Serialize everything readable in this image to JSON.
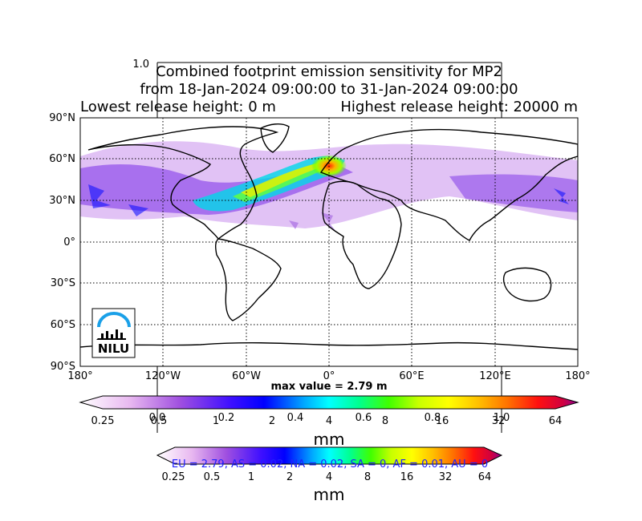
{
  "figure": {
    "stray_label": "1.0",
    "title_line1": "Combined footprint emission sensitivity for MP2",
    "title_line2": "from 18-Jan-2024 09:00:00 to 31-Jan-2024 09:00:00",
    "release_low": "Lowest release height: 0 m",
    "release_high": "Highest release height: 20000 m",
    "max_value": "max value = 2.79 m",
    "logo_text": "NILU",
    "region_summary": "EU = 2.79,  AS = 0.02,  NA = 0.02,  SA = 0,  AF = 0.01,  AU = 0"
  },
  "map": {
    "lat_ticks": [
      "90°N",
      "60°N",
      "30°N",
      "0°",
      "30°S",
      "60°S",
      "90°S"
    ],
    "lon_ticks": [
      "180°",
      "120°W",
      "60°W",
      "0°",
      "60°E",
      "120°E",
      "180°"
    ],
    "grid": true,
    "projection": "cylindrical"
  },
  "colorbars": {
    "scale_labels": [
      "0.25",
      "0.5",
      "1",
      "2",
      "4",
      "8",
      "16",
      "32",
      "64"
    ],
    "frac_labels": [
      "0.0",
      "0.2",
      "0.4",
      "0.6",
      "0.8",
      "1.0"
    ],
    "unit": "mm",
    "colors": [
      "#ffffff",
      "#e8b8f0",
      "#b060e0",
      "#6a20e8",
      "#0000ff",
      "#00a0ff",
      "#00ffff",
      "#00ff80",
      "#40ff00",
      "#c0ff00",
      "#ffff00",
      "#ffc000",
      "#ff8000",
      "#ff2000",
      "#e00030",
      "#900090"
    ]
  }
}
